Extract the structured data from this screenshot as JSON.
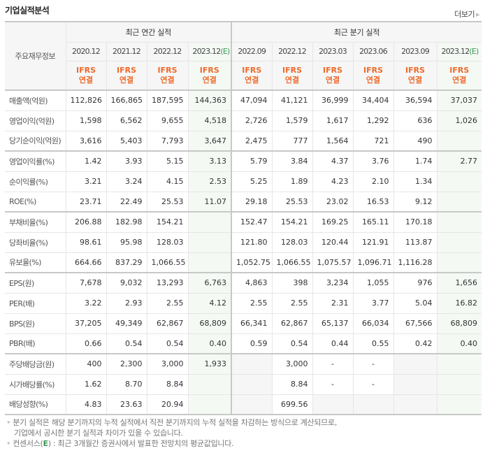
{
  "header": {
    "title": "기업실적분석",
    "more_label": "더보기",
    "more_icon": "triangle-right-icon"
  },
  "table": {
    "corner_label": "주요재무정보",
    "groups": [
      {
        "label": "최근 연간 실적",
        "span": 4
      },
      {
        "label": "최근 분기 실적",
        "span": 6
      }
    ],
    "periods": [
      {
        "label": "2020.12",
        "estimate": false
      },
      {
        "label": "2021.12",
        "estimate": false
      },
      {
        "label": "2022.12",
        "estimate": false
      },
      {
        "label": "2023.12",
        "estimate": true,
        "estimate_mark": "(E)"
      },
      {
        "label": "2022.09",
        "estimate": false
      },
      {
        "label": "2022.12",
        "estimate": false
      },
      {
        "label": "2023.03",
        "estimate": false
      },
      {
        "label": "2023.06",
        "estimate": false
      },
      {
        "label": "2023.09",
        "estimate": false
      },
      {
        "label": "2023.12",
        "estimate": true,
        "estimate_mark": "(E)"
      }
    ],
    "accounting": {
      "line1": "IFRS",
      "line2": "연결"
    },
    "rows": [
      {
        "label": "매출액(억원)",
        "values": [
          "112,826",
          "166,865",
          "187,595",
          "144,363",
          "47,094",
          "41,121",
          "36,999",
          "34,404",
          "36,594",
          "37,037"
        ]
      },
      {
        "label": "영업이익(억원)",
        "values": [
          "1,598",
          "6,562",
          "9,655",
          "4,518",
          "2,726",
          "1,579",
          "1,617",
          "1,292",
          "636",
          "1,026"
        ]
      },
      {
        "label": "당기순이익(억원)",
        "values": [
          "3,616",
          "5,403",
          "7,793",
          "3,647",
          "2,475",
          "777",
          "1,564",
          "721",
          "490",
          ""
        ]
      },
      {
        "label": "영업이익률(%)",
        "values": [
          "1.42",
          "3.93",
          "5.15",
          "3.13",
          "5.79",
          "3.84",
          "4.37",
          "3.76",
          "1.74",
          "2.77"
        ]
      },
      {
        "label": "순이익률(%)",
        "values": [
          "3.21",
          "3.24",
          "4.15",
          "2.53",
          "5.25",
          "1.89",
          "4.23",
          "2.10",
          "1.34",
          ""
        ]
      },
      {
        "label": "ROE(%)",
        "values": [
          "23.71",
          "22.49",
          "25.53",
          "11.07",
          "29.18",
          "25.53",
          "23.02",
          "16.53",
          "9.12",
          ""
        ]
      },
      {
        "label": "부채비율(%)",
        "values": [
          "206.88",
          "182.98",
          "154.21",
          "",
          "152.47",
          "154.21",
          "169.25",
          "165.11",
          "170.18",
          ""
        ]
      },
      {
        "label": "당좌비율(%)",
        "values": [
          "98.61",
          "95.98",
          "128.03",
          "",
          "121.80",
          "128.03",
          "120.44",
          "121.91",
          "113.87",
          ""
        ]
      },
      {
        "label": "유보율(%)",
        "values": [
          "664.66",
          "837.29",
          "1,066.55",
          "",
          "1,052.75",
          "1,066.55",
          "1,075.57",
          "1,096.71",
          "1,116.28",
          ""
        ]
      },
      {
        "label": "EPS(원)",
        "values": [
          "7,678",
          "9,032",
          "13,293",
          "6,763",
          "4,863",
          "398",
          "3,234",
          "1,055",
          "976",
          "1,656"
        ]
      },
      {
        "label": "PER(배)",
        "values": [
          "3.22",
          "2.93",
          "2.55",
          "4.12",
          "2.55",
          "2.55",
          "2.31",
          "3.77",
          "5.04",
          "16.82"
        ]
      },
      {
        "label": "BPS(원)",
        "values": [
          "37,205",
          "49,349",
          "62,867",
          "68,809",
          "66,341",
          "62,867",
          "65,137",
          "66,034",
          "67,566",
          "68,809"
        ]
      },
      {
        "label": "PBR(배)",
        "values": [
          "0.66",
          "0.54",
          "0.54",
          "0.40",
          "0.59",
          "0.54",
          "0.44",
          "0.55",
          "0.42",
          "0.40"
        ]
      },
      {
        "label": "주당배당금(원)",
        "values": [
          "400",
          "2,300",
          "3,000",
          "1,933",
          "",
          "3,000",
          "-",
          "-",
          "",
          ""
        ]
      },
      {
        "label": "시가배당률(%)",
        "values": [
          "1.62",
          "8.70",
          "8.84",
          "",
          "",
          "8.84",
          "-",
          "-",
          "",
          ""
        ]
      },
      {
        "label": "배당성향(%)",
        "values": [
          "4.83",
          "23.63",
          "20.94",
          "",
          "",
          "699.56",
          "",
          "",
          "",
          ""
        ]
      }
    ]
  },
  "notes": {
    "note1_line1": "분기 실적은 해당 분기까지의 누적 실적에서 직전 분기까지의 누적 실적을 차감하는 방식으로 계산되므로,",
    "note1_line2": "기업에서 공시한 분기 실적과 차이가 있을 수 있습니다.",
    "note2_prefix": "컨센서스(",
    "note2_mark": "E",
    "note2_suffix": ") : 최근 3개월간 증권사에서 발표한 전망치의 평균값입니다."
  },
  "colors": {
    "accounting_orange": "#ee6a2a",
    "estimate_green": "#3a9a55",
    "estimate_column_bg": "#f4f9f4",
    "header_bg": "#f6f6f6"
  }
}
